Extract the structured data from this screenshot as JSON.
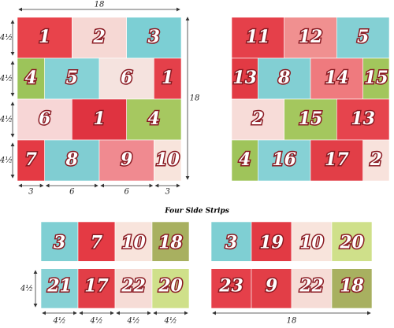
{
  "dimensions": {
    "top_width": "18",
    "side_height": "18",
    "row_heights": [
      "4½",
      "4½",
      "4½",
      "4½"
    ],
    "column_widths": [
      "3",
      "6",
      "6",
      "3"
    ]
  },
  "left_quilt": {
    "rows": [
      [
        {
          "label": "1",
          "color": "#e8434b"
        },
        {
          "label": "2",
          "color": "#f6d8d4"
        },
        {
          "label": "3",
          "color": "#7ccfd4"
        }
      ],
      [
        {
          "label": "4",
          "color": "#9cc45a"
        },
        {
          "label": "5",
          "color": "#86d2d6"
        },
        {
          "label": "6",
          "color": "#f5e3df"
        },
        {
          "label": "1",
          "color": "#e4404a"
        }
      ],
      [
        {
          "label": "6",
          "color": "#f7d6d6"
        },
        {
          "label": "1",
          "color": "#df3340"
        },
        {
          "label": "4",
          "color": "#a6c860"
        }
      ],
      [
        {
          "label": "7",
          "color": "#e43a44"
        },
        {
          "label": "8",
          "color": "#80cdd2"
        },
        {
          "label": "9",
          "color": "#f08a90"
        },
        {
          "label": "10",
          "color": "#f8e4dc"
        }
      ]
    ]
  },
  "right_quilt": {
    "rows": [
      [
        {
          "label": "11",
          "color": "#e5404a"
        },
        {
          "label": "12",
          "color": "#f09090"
        },
        {
          "label": "5",
          "color": "#84d0d4"
        }
      ],
      [
        {
          "label": "13",
          "color": "#e23a44"
        },
        {
          "label": "8",
          "color": "#82cfd3"
        },
        {
          "label": "14",
          "color": "#ef7a7e"
        },
        {
          "label": "15",
          "color": "#a2c65c"
        }
      ],
      [
        {
          "label": "2",
          "color": "#f7dcd8"
        },
        {
          "label": "15",
          "color": "#a4c75e"
        },
        {
          "label": "13",
          "color": "#e6444d"
        }
      ],
      [
        {
          "label": "4",
          "color": "#9fc45a"
        },
        {
          "label": "16",
          "color": "#86d1d5"
        },
        {
          "label": "17",
          "color": "#e23e47"
        },
        {
          "label": "2",
          "color": "#f8e2dc"
        }
      ]
    ]
  },
  "side_strips": {
    "title": "Four Side Strips",
    "left": {
      "rows": [
        [
          {
            "label": "3",
            "color": "#7fcfd3"
          },
          {
            "label": "7",
            "color": "#e43a44"
          },
          {
            "label": "10",
            "color": "#f8e4dc"
          },
          {
            "label": "18",
            "color": "#a8b060"
          }
        ],
        [
          {
            "label": "21",
            "color": "#86d1d5"
          },
          {
            "label": "17",
            "color": "#e23e47"
          },
          {
            "label": "22",
            "color": "#f6dcd6"
          },
          {
            "label": "20",
            "color": "#cfe08a"
          }
        ]
      ],
      "row_height": "4½",
      "patch_widths": [
        "4½",
        "4½",
        "4½",
        "4½"
      ]
    },
    "right": {
      "rows": [
        [
          {
            "label": "3",
            "color": "#7fcfd3"
          },
          {
            "label": "19",
            "color": "#e23a44"
          },
          {
            "label": "10",
            "color": "#f8e4dc"
          },
          {
            "label": "20",
            "color": "#cfe08a"
          }
        ],
        [
          {
            "label": "23",
            "color": "#e5404a"
          },
          {
            "label": "9",
            "color": "#e23e47"
          },
          {
            "label": "22",
            "color": "#f6dcd6"
          },
          {
            "label": "18",
            "color": "#a8b060"
          }
        ]
      ],
      "width": "18"
    }
  }
}
